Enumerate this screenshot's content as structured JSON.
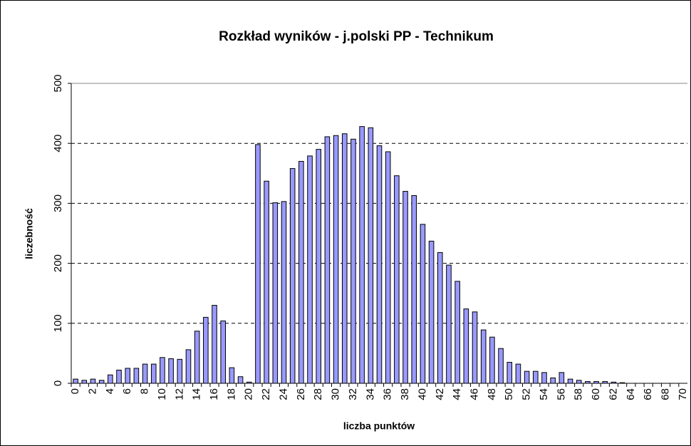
{
  "chart_data": {
    "type": "bar",
    "title": "Rozkład wyników - j.polski PP - Technikum",
    "x_label": "liczba punktów",
    "y_label": "liczebność",
    "categories": [
      "0",
      null,
      "2",
      null,
      "4",
      null,
      "6",
      null,
      "8",
      null,
      "10",
      null,
      "12",
      null,
      "14",
      null,
      "16",
      null,
      "18",
      null,
      "20",
      null,
      "22",
      null,
      "24",
      null,
      "26",
      null,
      "28",
      null,
      "30",
      null,
      "32",
      null,
      "34",
      null,
      "36",
      null,
      "38",
      null,
      "40",
      null,
      "42",
      null,
      "44",
      null,
      "46",
      null,
      "48",
      null,
      "50",
      null,
      "52",
      null,
      "54",
      null,
      "56",
      null,
      "58",
      null,
      "60",
      null,
      "62",
      null,
      "64",
      null,
      "66",
      null,
      "68",
      null,
      "70"
    ],
    "values": [
      7,
      5,
      7,
      5,
      14,
      22,
      25,
      25,
      32,
      32,
      43,
      41,
      40,
      56,
      87,
      110,
      130,
      104,
      26,
      11,
      2,
      398,
      337,
      301,
      303,
      358,
      370,
      379,
      390,
      411,
      413,
      416,
      407,
      428,
      426,
      396,
      386,
      346,
      320,
      313,
      265,
      237,
      218,
      197,
      170,
      124,
      119,
      89,
      77,
      58,
      35,
      32,
      20,
      20,
      18,
      9,
      18,
      7,
      5,
      3,
      3,
      3,
      2,
      1,
      0,
      0,
      0,
      0,
      0,
      0,
      0
    ],
    "color": "#9999ff",
    "ylim": [
      0,
      500
    ],
    "yticks": [
      0,
      100,
      200,
      300,
      400,
      500
    ],
    "grid": true
  }
}
